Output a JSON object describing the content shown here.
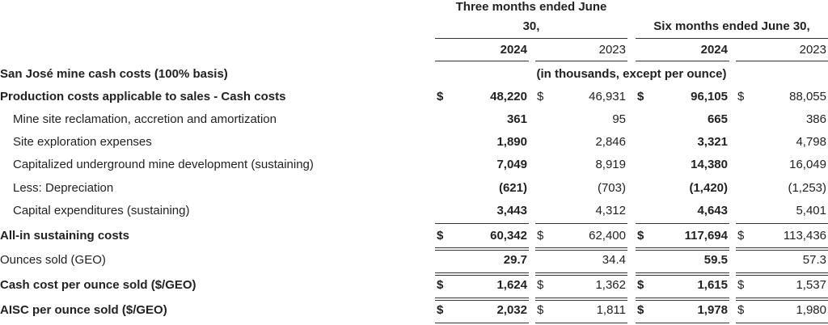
{
  "header": {
    "three_months_line1": "Three months ended June",
    "three_months_line2": "30,",
    "six_months": "Six months ended June 30,",
    "year_2024_a": "2024",
    "year_2023_a": "2023",
    "year_2024_b": "2024",
    "year_2023_b": "2023",
    "units": "(in thousands, except per ounce)"
  },
  "section_title": "San José mine cash costs (100% basis)",
  "rows": [
    {
      "label": "Production costs applicable to sales - Cash costs",
      "bold": true,
      "dollar": true,
      "v": [
        "48,220",
        "46,931",
        "96,105",
        "88,055"
      ]
    },
    {
      "label": "Mine site reclamation, accretion and amortization",
      "bold": false,
      "dollar": false,
      "v": [
        "361",
        "95",
        "665",
        "386"
      ]
    },
    {
      "label": "Site exploration expenses",
      "bold": false,
      "dollar": false,
      "v": [
        "1,890",
        "2,846",
        "3,321",
        "4,798"
      ]
    },
    {
      "label": "Capitalized underground mine development (sustaining)",
      "bold": false,
      "dollar": false,
      "v": [
        "7,049",
        "8,919",
        "14,380",
        "16,049"
      ]
    },
    {
      "label": "Less: Depreciation",
      "bold": false,
      "dollar": false,
      "v": [
        "(621)",
        "(703)",
        "(1,420)",
        "(1,253)"
      ]
    },
    {
      "label": "Capital expenditures (sustaining)",
      "bold": false,
      "dollar": false,
      "v": [
        "3,443",
        "4,312",
        "4,643",
        "5,401"
      ]
    },
    {
      "label": "All-in sustaining costs",
      "bold": true,
      "dollar": true,
      "v": [
        "60,342",
        "62,400",
        "117,694",
        "113,436"
      ]
    },
    {
      "label": "Ounces sold (GEO)",
      "bold": false,
      "dollar": false,
      "v": [
        "29.7",
        "34.4",
        "59.5",
        "57.3"
      ]
    },
    {
      "label": "Cash cost per ounce sold ($/GEO)",
      "bold": true,
      "dollar": true,
      "v": [
        "1,624",
        "1,362",
        "1,615",
        "1,537"
      ]
    },
    {
      "label": "AISC per ounce sold ($/GEO)",
      "bold": true,
      "dollar": true,
      "v": [
        "2,032",
        "1,811",
        "1,978",
        "1,980"
      ]
    }
  ],
  "currency_symbol": "$"
}
